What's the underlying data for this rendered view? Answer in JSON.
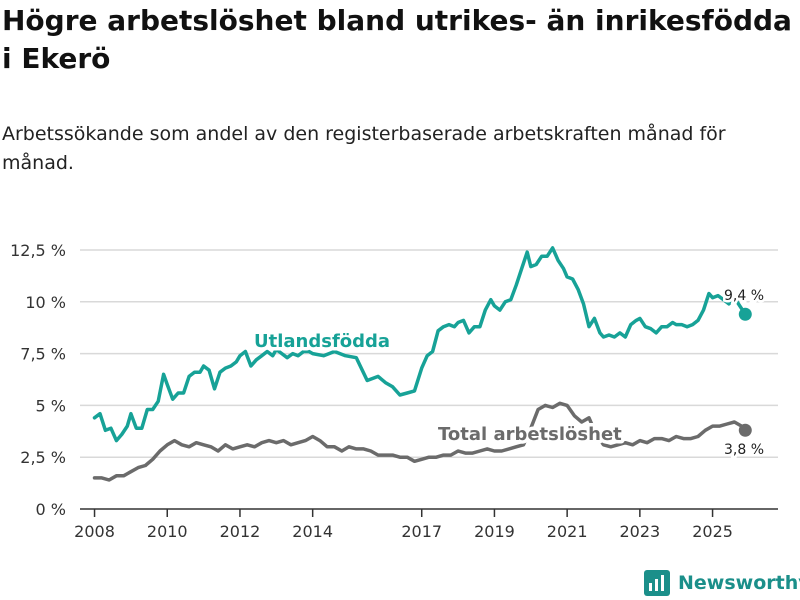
{
  "title": "Högre arbetslöshet bland utrikes- än inrikesfödda i Ekerö",
  "subtitle": "Arbetssökande som andel av den registerbaserade arbetskraften månad för månad.",
  "brand": "Newsworthy",
  "colors": {
    "foreign": "#17a297",
    "total": "#6b6b6b",
    "grid": "#d9d9d9",
    "axis": "#333333"
  },
  "chart_data": {
    "type": "line",
    "title": "Högre arbetslöshet bland utrikes- än inrikesfödda i Ekerö",
    "xlabel": "",
    "ylabel": "",
    "xlim": [
      2007.6,
      2026.8
    ],
    "ylim": [
      0,
      12.5
    ],
    "grid": true,
    "y_ticks": [
      0,
      2.5,
      5,
      7.5,
      10,
      12.5
    ],
    "y_tick_labels": [
      "0 %",
      "2,5 %",
      "5 %",
      "7,5 %",
      "10 %",
      "12,5 %"
    ],
    "x_ticks": [
      2008,
      2010,
      2012,
      2014,
      2017,
      2019,
      2021,
      2023,
      2025
    ],
    "x_tick_labels": [
      "2008",
      "2010",
      "2012",
      "2014",
      "2017",
      "2019",
      "2021",
      "2023",
      "2025"
    ],
    "series": [
      {
        "name": "Utlandsfödda",
        "label": "Utlandsfödda",
        "end_label": "9,4 %",
        "x": [
          2008.0,
          2008.15,
          2008.3,
          2008.45,
          2008.6,
          2008.75,
          2008.9,
          2009.0,
          2009.15,
          2009.3,
          2009.45,
          2009.6,
          2009.75,
          2009.9,
          2010.0,
          2010.15,
          2010.3,
          2010.45,
          2010.6,
          2010.75,
          2010.9,
          2011.0,
          2011.15,
          2011.3,
          2011.45,
          2011.6,
          2011.75,
          2011.9,
          2012.0,
          2012.15,
          2012.3,
          2012.45,
          2012.6,
          2012.75,
          2012.9,
          2013.0,
          2013.15,
          2013.3,
          2013.45,
          2013.6,
          2013.75,
          2013.9,
          2014.0,
          2014.3,
          2014.6,
          2014.9,
          2015.2,
          2015.5,
          2015.8,
          2016.0,
          2016.2,
          2016.4,
          2016.6,
          2016.8,
          2017.0,
          2017.15,
          2017.3,
          2017.45,
          2017.6,
          2017.75,
          2017.9,
          2018.0,
          2018.15,
          2018.3,
          2018.45,
          2018.6,
          2018.75,
          2018.9,
          2019.0,
          2019.15,
          2019.3,
          2019.45,
          2019.6,
          2019.75,
          2019.9,
          2020.0,
          2020.15,
          2020.3,
          2020.45,
          2020.6,
          2020.75,
          2020.9,
          2021.0,
          2021.15,
          2021.3,
          2021.45,
          2021.6,
          2021.75,
          2021.9,
          2022.0,
          2022.15,
          2022.3,
          2022.45,
          2022.6,
          2022.75,
          2022.9,
          2023.0,
          2023.15,
          2023.3,
          2023.45,
          2023.6,
          2023.75,
          2023.9,
          2024.0,
          2024.15,
          2024.3,
          2024.45,
          2024.6,
          2024.75,
          2024.9,
          2025.0,
          2025.15,
          2025.3,
          2025.45,
          2025.6,
          2025.75,
          2025.9
        ],
        "values": [
          4.4,
          4.6,
          3.8,
          3.9,
          3.3,
          3.6,
          4.0,
          4.6,
          3.9,
          3.9,
          4.8,
          4.8,
          5.2,
          6.5,
          6.0,
          5.3,
          5.6,
          5.6,
          6.4,
          6.6,
          6.6,
          6.9,
          6.7,
          5.8,
          6.6,
          6.8,
          6.9,
          7.1,
          7.4,
          7.6,
          6.9,
          7.2,
          7.4,
          7.6,
          7.4,
          7.7,
          7.5,
          7.3,
          7.5,
          7.4,
          7.6,
          7.6,
          7.5,
          7.4,
          7.6,
          7.4,
          7.3,
          6.2,
          6.4,
          6.1,
          5.9,
          5.5,
          5.6,
          5.7,
          6.8,
          7.4,
          7.6,
          8.6,
          8.8,
          8.9,
          8.8,
          9.0,
          9.1,
          8.5,
          8.8,
          8.8,
          9.6,
          10.1,
          9.8,
          9.6,
          10.0,
          10.1,
          10.8,
          11.6,
          12.4,
          11.7,
          11.8,
          12.2,
          12.2,
          12.6,
          12.0,
          11.6,
          11.2,
          11.1,
          10.6,
          9.9,
          8.8,
          9.2,
          8.5,
          8.3,
          8.4,
          8.3,
          8.5,
          8.3,
          8.9,
          9.1,
          9.2,
          8.8,
          8.7,
          8.5,
          8.8,
          8.8,
          9.0,
          8.9,
          8.9,
          8.8,
          8.9,
          9.1,
          9.6,
          10.4,
          10.2,
          10.3,
          10.1,
          9.9,
          10.2,
          9.8,
          9.4
        ]
      },
      {
        "name": "Total arbetslöshet",
        "label": "Total arbetslöshet",
        "end_label": "3,8 %",
        "x": [
          2008.0,
          2008.2,
          2008.4,
          2008.6,
          2008.8,
          2009.0,
          2009.2,
          2009.4,
          2009.6,
          2009.8,
          2010.0,
          2010.2,
          2010.4,
          2010.6,
          2010.8,
          2011.0,
          2011.2,
          2011.4,
          2011.6,
          2011.8,
          2012.0,
          2012.2,
          2012.4,
          2012.6,
          2012.8,
          2013.0,
          2013.2,
          2013.4,
          2013.6,
          2013.8,
          2014.0,
          2014.2,
          2014.4,
          2014.6,
          2014.8,
          2015.0,
          2015.2,
          2015.4,
          2015.6,
          2015.8,
          2016.0,
          2016.2,
          2016.4,
          2016.6,
          2016.8,
          2017.0,
          2017.2,
          2017.4,
          2017.6,
          2017.8,
          2018.0,
          2018.2,
          2018.4,
          2018.6,
          2018.8,
          2019.0,
          2019.2,
          2019.4,
          2019.6,
          2019.8,
          2020.0,
          2020.2,
          2020.4,
          2020.6,
          2020.8,
          2021.0,
          2021.2,
          2021.4,
          2021.6,
          2021.8,
          2022.0,
          2022.2,
          2022.4,
          2022.6,
          2022.8,
          2023.0,
          2023.2,
          2023.4,
          2023.6,
          2023.8,
          2024.0,
          2024.2,
          2024.4,
          2024.6,
          2024.8,
          2025.0,
          2025.2,
          2025.4,
          2025.6,
          2025.8,
          2025.9
        ],
        "values": [
          1.5,
          1.5,
          1.4,
          1.6,
          1.6,
          1.8,
          2.0,
          2.1,
          2.4,
          2.8,
          3.1,
          3.3,
          3.1,
          3.0,
          3.2,
          3.1,
          3.0,
          2.8,
          3.1,
          2.9,
          3.0,
          3.1,
          3.0,
          3.2,
          3.3,
          3.2,
          3.3,
          3.1,
          3.2,
          3.3,
          3.5,
          3.3,
          3.0,
          3.0,
          2.8,
          3.0,
          2.9,
          2.9,
          2.8,
          2.6,
          2.6,
          2.6,
          2.5,
          2.5,
          2.3,
          2.4,
          2.5,
          2.5,
          2.6,
          2.6,
          2.8,
          2.7,
          2.7,
          2.8,
          2.9,
          2.8,
          2.8,
          2.9,
          3.0,
          3.1,
          3.9,
          4.8,
          5.0,
          4.9,
          5.1,
          5.0,
          4.5,
          4.2,
          4.4,
          3.6,
          3.1,
          3.0,
          3.1,
          3.2,
          3.1,
          3.3,
          3.2,
          3.4,
          3.4,
          3.3,
          3.5,
          3.4,
          3.4,
          3.5,
          3.8,
          4.0,
          4.0,
          4.1,
          4.2,
          4.0,
          3.8
        ]
      }
    ]
  }
}
